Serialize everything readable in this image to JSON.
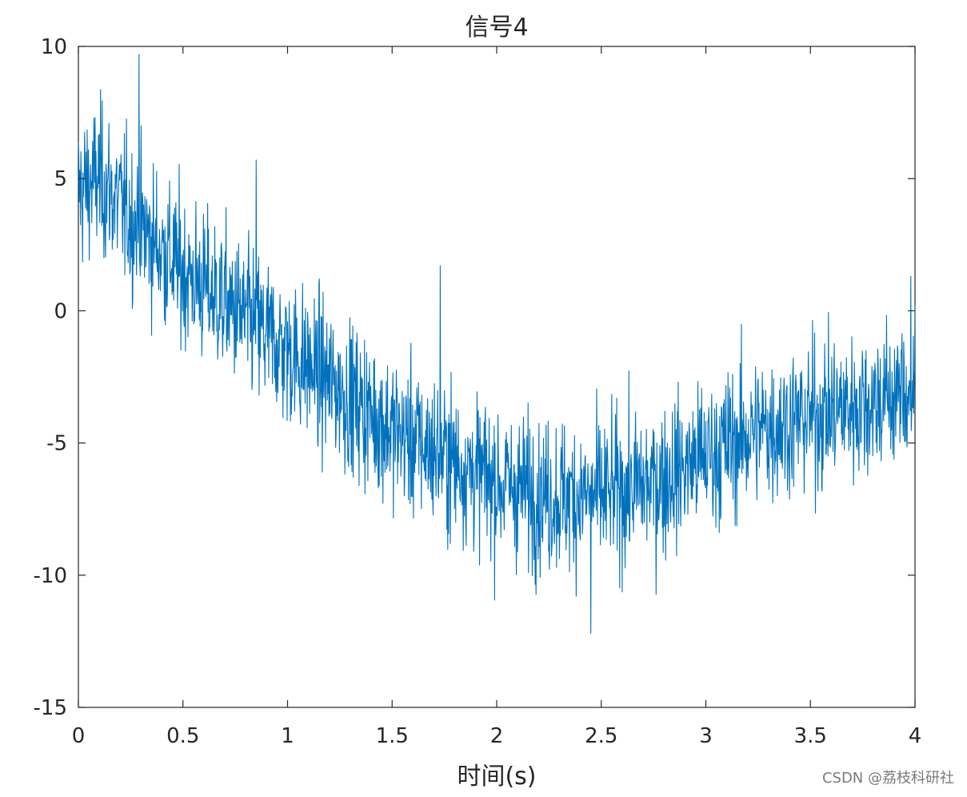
{
  "chart_data": {
    "type": "line",
    "title": "信号4",
    "xlabel": "时间(s)",
    "ylabel": "",
    "xlim": [
      0,
      4
    ],
    "ylim": [
      -15,
      10
    ],
    "xticks": [
      0,
      0.5,
      1,
      1.5,
      2,
      2.5,
      3,
      3.5,
      4
    ],
    "xtick_labels": [
      "0",
      "0.5",
      "1",
      "1.5",
      "2",
      "2.5",
      "3",
      "3.5",
      "4"
    ],
    "yticks": [
      10,
      5,
      0,
      -5,
      -10,
      -15
    ],
    "ytick_labels": [
      "10",
      "5",
      "0",
      "-5",
      "-10",
      "-15"
    ],
    "grid": false,
    "line_color": "#0072BD",
    "trend": {
      "x": [
        0,
        0.1,
        0.25,
        0.5,
        0.75,
        1.0,
        1.25,
        1.5,
        1.75,
        2.0,
        2.25,
        2.5,
        2.75,
        3.0,
        3.25,
        3.5,
        3.75,
        4.0
      ],
      "y": [
        4.5,
        5.0,
        3.5,
        1.5,
        0.0,
        -1.5,
        -3.0,
        -4.5,
        -5.5,
        -6.5,
        -7.0,
        -7.0,
        -6.5,
        -5.5,
        -4.5,
        -4.0,
        -3.5,
        -3.0
      ]
    },
    "noise_amplitude": 2.0,
    "sample_interval": 0.002,
    "highlight_points": [
      {
        "x": 0.29,
        "y": 9.7
      },
      {
        "x": 0.85,
        "y": 5.7
      },
      {
        "x": 1.73,
        "y": 1.7
      },
      {
        "x": 2.45,
        "y": -12.2
      },
      {
        "x": 3.98,
        "y": 1.3
      }
    ]
  },
  "watermark": "CSDN @荔枝科研社"
}
